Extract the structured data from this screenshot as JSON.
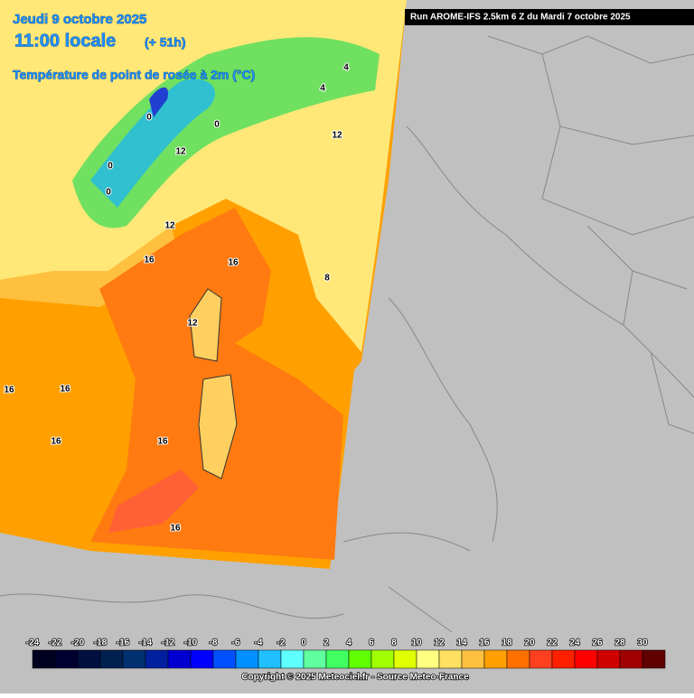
{
  "header": {
    "date": "Jeudi 9 octobre 2025",
    "time": "11:00 locale",
    "lead": "(+ 51h)",
    "variable": "Température de point de rosée à 2m (°C)",
    "run": "Run AROME-IFS 2.5km 6 Z du Mardi 7 octobre 2025"
  },
  "legend": {
    "ticks": [
      -24,
      -22,
      -20,
      -18,
      -16,
      -14,
      -12,
      -10,
      -8,
      -6,
      -4,
      -2,
      0,
      2,
      4,
      6,
      8,
      10,
      12,
      14,
      16,
      18,
      20,
      22,
      24,
      26,
      28,
      30
    ],
    "colors": [
      "#000020",
      "#000030",
      "#001040",
      "#002050",
      "#003070",
      "#0020a0",
      "#0000d0",
      "#0000ff",
      "#0050ff",
      "#0090ff",
      "#20c0ff",
      "#60ffff",
      "#60ffa0",
      "#40ff60",
      "#60ff00",
      "#a0ff00",
      "#e0ff00",
      "#ffff80",
      "#ffe060",
      "#ffc040",
      "#ffa000",
      "#ff7000",
      "#ff4020",
      "#ff2000",
      "#ff0000",
      "#d00000",
      "#a00000",
      "#600000"
    ]
  },
  "contour_labels": [
    16,
    16,
    16,
    16,
    16,
    16,
    16,
    12,
    12,
    12,
    12,
    0,
    0,
    0,
    0,
    4,
    4,
    8
  ],
  "copyright": "Copyright © 2025 Meteociel.fr - Source Meteo-France"
}
